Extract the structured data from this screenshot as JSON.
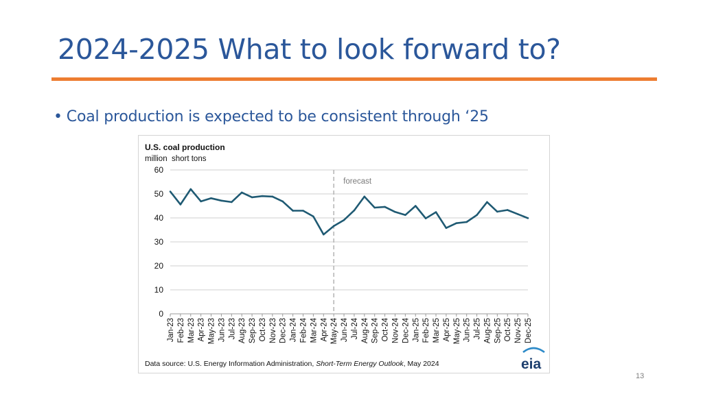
{
  "slide": {
    "title": "2024-2025 What to look forward to?",
    "bullet_marker": "•",
    "bullet": "Coal production is expected to be consistent through ‘25",
    "page_number": "13"
  },
  "colors": {
    "title": "#2b579a",
    "rule": "#ed7d31",
    "line": "#1f5a73",
    "grid": "#cfcfcf",
    "forecast_divider": "#b3b3b3"
  },
  "chart_data": {
    "type": "line",
    "title": "U.S. coal production",
    "subtitle": "million  short tons",
    "ylim": [
      0,
      60
    ],
    "yticks": [
      0,
      10,
      20,
      30,
      40,
      50,
      60
    ],
    "grid": true,
    "categories": [
      "Jan-23",
      "Feb-23",
      "Mar-23",
      "Apr-23",
      "May-23",
      "Jun-23",
      "Jul-23",
      "Aug-23",
      "Sep-23",
      "Oct-23",
      "Nov-23",
      "Dec-23",
      "Jan-24",
      "Feb-24",
      "Mar-24",
      "Apr-24",
      "May-24",
      "Jun-24",
      "Jul-24",
      "Aug-24",
      "Sep-24",
      "Oct-24",
      "Nov-24",
      "Dec-24",
      "Jan-25",
      "Feb-25",
      "Mar-25",
      "Apr-25",
      "May-25",
      "Jun-25",
      "Jul-25",
      "Aug-25",
      "Sep-25",
      "Oct-25",
      "Nov-25",
      "Dec-25"
    ],
    "series": [
      {
        "values": [
          51,
          45.6,
          52,
          46.9,
          48.2,
          47.2,
          46.6,
          50.6,
          48.6,
          49.1,
          48.9,
          46.9,
          43,
          43,
          40.6,
          33.1,
          36.6,
          39.1,
          43.1,
          48.9,
          44.3,
          44.6,
          42.5,
          41.2,
          45,
          39.8,
          42.4,
          35.8,
          37.8,
          38.3,
          41.2,
          46.6,
          42.6,
          43.3,
          41.6,
          39.9
        ]
      }
    ],
    "forecast": {
      "label": "forecast",
      "start_category": "May-24"
    },
    "source": {
      "prefix": "Data source: U.S. Energy Information Administration, ",
      "publication": "Short-Term Energy Outlook",
      "suffix": ", May 2024"
    },
    "logo_text": "eia"
  }
}
